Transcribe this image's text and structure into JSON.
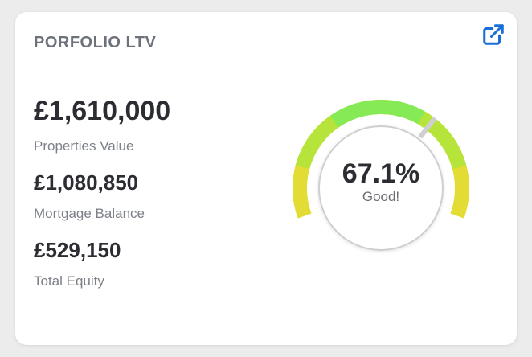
{
  "card": {
    "title": "PORFOLIO LTV"
  },
  "icons": {
    "open": "external-link-icon"
  },
  "colors": {
    "link_blue": "#1a6fd6",
    "gauge_yellow": "#e2dc34",
    "gauge_lime": "#b6e43a",
    "gauge_green": "#86ea56",
    "needle": "#cfcfcf"
  },
  "stats": [
    {
      "value": "£1,610,000",
      "label": "Properties Value"
    },
    {
      "value": "£1,080,850",
      "label": "Mortgage Balance"
    },
    {
      "value": "£529,150",
      "label": "Total Equity"
    }
  ],
  "gauge": {
    "value_text": "67.1%",
    "status": "Good!",
    "ltv_percent": 67.1
  }
}
